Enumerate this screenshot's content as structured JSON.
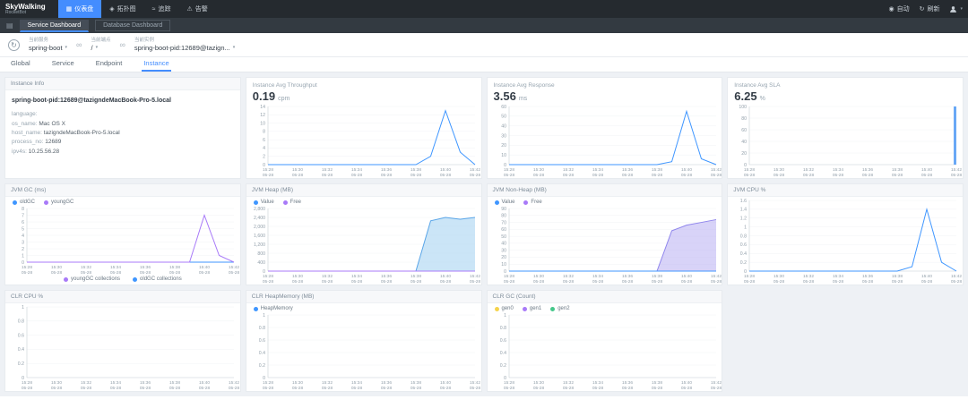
{
  "icons": {
    "dashboard": "▦",
    "topology": "◈",
    "trace": "≈",
    "alarm": "⚠",
    "auto": "◉",
    "refresh": "↻",
    "grid": "▤",
    "link": "∞",
    "caret": "▾",
    "refresh_circle": "↻"
  },
  "navbar": {
    "logo_title": "SkyWalking",
    "logo_subtitle": "RocketBot",
    "menu": [
      {
        "label": "仪表盘",
        "active": true
      },
      {
        "label": "拓扑图",
        "active": false
      },
      {
        "label": "追踪",
        "active": false
      },
      {
        "label": "告警",
        "active": false
      }
    ],
    "auto_label": "自动",
    "refresh_label": "刷新"
  },
  "dashboard_tabs": [
    {
      "label": "Service Dashboard",
      "active": true
    },
    {
      "label": "Database Dashboard",
      "active": false
    }
  ],
  "toolbar": {
    "service": {
      "label": "当前服务",
      "value": "spring-boot"
    },
    "endpoint": {
      "label": "当前端点",
      "value": "/"
    },
    "instance": {
      "label": "当前实例",
      "value": "spring-boot-pid:12689@tazign..."
    }
  },
  "view_tabs": [
    {
      "label": "Global",
      "active": false
    },
    {
      "label": "Service",
      "active": false
    },
    {
      "label": "Endpoint",
      "active": false
    },
    {
      "label": "Instance",
      "active": true
    }
  ],
  "panels": {
    "instance_info": {
      "title": "Instance Info",
      "instance_name": "spring-boot-pid:12689@tazigndeMacBook-Pro-5.local",
      "fields": [
        {
          "key": "language:",
          "value": ""
        },
        {
          "key": "os_name:",
          "value": "Mac OS X"
        },
        {
          "key": "host_name:",
          "value": "tazigndeMacBook-Pro-5.local"
        },
        {
          "key": "process_no:",
          "value": "12689"
        },
        {
          "key": "ipv4s:",
          "value": "10.25.56.28"
        }
      ]
    },
    "throughput": {
      "title": "Instance Avg Throughput",
      "value": "0.19",
      "unit": "cpm"
    },
    "response": {
      "title": "Instance Avg Response",
      "value": "3.56",
      "unit": "ms"
    },
    "sla": {
      "title": "Instance Avg SLA",
      "value": "6.25",
      "unit": "%"
    },
    "jvm_gc": {
      "title": "JVM GC (ms)",
      "legend": [
        {
          "label": "oldGC",
          "color": "#3f96ff"
        },
        {
          "label": "youngGC",
          "color": "#a87af8"
        }
      ],
      "bottom_legend": [
        {
          "label": "youngGC collections",
          "color": "#a87af8"
        },
        {
          "label": "oldGC collections",
          "color": "#3f96ff"
        }
      ]
    },
    "jvm_heap": {
      "title": "JVM Heap (MB)",
      "legend": [
        {
          "label": "Value",
          "color": "#3f96ff"
        },
        {
          "label": "Free",
          "color": "#a87af8"
        }
      ]
    },
    "jvm_nonheap": {
      "title": "JVM Non-Heap (MB)",
      "legend": [
        {
          "label": "Value",
          "color": "#3f96ff"
        },
        {
          "label": "Free",
          "color": "#a87af8"
        }
      ]
    },
    "jvm_cpu": {
      "title": "JVM CPU %"
    },
    "clr_cpu": {
      "title": "CLR CPU %"
    },
    "clr_heap": {
      "title": "CLR HeapMemory (MB)",
      "legend": [
        {
          "label": "HeapMemory",
          "color": "#3f96ff"
        }
      ]
    },
    "clr_gc": {
      "title": "CLR GC (Count)",
      "legend": [
        {
          "label": "gen0",
          "color": "#f5d34c"
        },
        {
          "label": "gen1",
          "color": "#a87af8"
        },
        {
          "label": "gen2",
          "color": "#45c78a"
        }
      ]
    }
  },
  "chart_data": {
    "throughput": {
      "type": "line",
      "x_labels": [
        "15:28",
        "15:30",
        "15:32",
        "15:34",
        "15:36",
        "15:38",
        "15:40",
        "15:42"
      ],
      "x_sub": "05-28",
      "ylim": [
        0,
        14
      ],
      "y_ticks": [
        0,
        2,
        4,
        6,
        8,
        10,
        12,
        14
      ],
      "series": [
        {
          "name": "Throughput",
          "type": "line",
          "color": "#3f96ff",
          "values": [
            0,
            0,
            0,
            0,
            0,
            0,
            0,
            0,
            0,
            0,
            0,
            2,
            13,
            3,
            0
          ]
        }
      ]
    },
    "response": {
      "type": "line",
      "x_labels": [
        "15:28",
        "15:30",
        "15:32",
        "15:34",
        "15:36",
        "15:38",
        "15:40",
        "15:42"
      ],
      "x_sub": "05-28",
      "ylim": [
        0,
        60
      ],
      "y_ticks": [
        0,
        10,
        20,
        30,
        40,
        50,
        60
      ],
      "series": [
        {
          "name": "Response",
          "type": "line",
          "color": "#3f96ff",
          "values": [
            0,
            0,
            0,
            0,
            0,
            0,
            0,
            0,
            0,
            0,
            0,
            3,
            55,
            6,
            0
          ]
        }
      ]
    },
    "sla": {
      "type": "bar",
      "x_labels": [
        "15:28",
        "15:30",
        "15:32",
        "15:34",
        "15:36",
        "15:38",
        "15:40",
        "15:42"
      ],
      "x_sub": "05-28",
      "ylim": [
        0,
        100
      ],
      "y_ticks": [
        0,
        20,
        40,
        60,
        80,
        100
      ],
      "series": [
        {
          "name": "SLA",
          "type": "bar",
          "color": "#69a8f6",
          "values": [
            0,
            0,
            0,
            0,
            0,
            0,
            0,
            0,
            0,
            0,
            0,
            0,
            0,
            0,
            100
          ]
        }
      ]
    },
    "jvm_gc": {
      "type": "line",
      "x_labels": [
        "15:28",
        "15:30",
        "15:32",
        "15:34",
        "15:36",
        "15:38",
        "15:40",
        "15:42"
      ],
      "x_sub": "05-28",
      "ylim": [
        0,
        8
      ],
      "y_ticks": [
        0,
        1,
        2,
        3,
        4,
        5,
        6,
        7,
        8
      ],
      "series": [
        {
          "name": "oldGC",
          "type": "line",
          "color": "#3f96ff",
          "values": [
            0,
            0,
            0,
            0,
            0,
            0,
            0,
            0,
            0,
            0,
            0,
            0,
            0,
            0,
            0
          ]
        },
        {
          "name": "youngGC",
          "type": "line",
          "color": "#a87af8",
          "values": [
            0,
            0,
            0,
            0,
            0,
            0,
            0,
            0,
            0,
            0,
            0,
            0,
            7,
            1,
            0
          ]
        }
      ]
    },
    "jvm_heap": {
      "type": "area",
      "x_labels": [
        "15:28",
        "15:30",
        "15:32",
        "15:34",
        "15:36",
        "15:38",
        "15:40",
        "15:42"
      ],
      "x_sub": "05-28",
      "ylim": [
        0,
        2800
      ],
      "y_ticks": [
        0,
        400,
        800,
        1200,
        1600,
        2000,
        2400,
        2800
      ],
      "series": [
        {
          "name": "Value",
          "type": "area",
          "color": "#59a5e8",
          "fill": "#a8d4f2",
          "values": [
            0,
            0,
            0,
            0,
            0,
            0,
            0,
            0,
            0,
            0,
            0,
            2250,
            2400,
            2320,
            2400
          ]
        },
        {
          "name": "Free",
          "type": "line",
          "color": "#a87af8",
          "values": [
            0,
            0,
            0,
            0,
            0,
            0,
            0,
            0,
            0,
            0,
            0,
            0,
            0,
            0,
            0
          ]
        }
      ]
    },
    "jvm_nonheap": {
      "type": "area",
      "x_labels": [
        "15:28",
        "15:30",
        "15:32",
        "15:34",
        "15:36",
        "15:38",
        "15:40",
        "15:42"
      ],
      "x_sub": "05-28",
      "ylim": [
        0,
        90
      ],
      "y_ticks": [
        0,
        10,
        20,
        30,
        40,
        50,
        60,
        70,
        80,
        90
      ],
      "series": [
        {
          "name": "Free",
          "type": "area",
          "color": "#8f85ec",
          "fill": "#beb6f4",
          "values": [
            0,
            0,
            0,
            0,
            0,
            0,
            0,
            0,
            0,
            0,
            0,
            58,
            66,
            70,
            74
          ]
        },
        {
          "name": "Value",
          "type": "line",
          "color": "#3f96ff",
          "values": [
            0,
            0,
            0,
            0,
            0,
            0,
            0,
            0,
            0,
            0,
            0,
            0,
            0,
            0,
            0
          ]
        }
      ]
    },
    "jvm_cpu": {
      "type": "line",
      "x_labels": [
        "15:28",
        "15:30",
        "15:32",
        "15:34",
        "15:36",
        "15:38",
        "15:40",
        "15:42"
      ],
      "x_sub": "05-28",
      "ylim": [
        0,
        1.6
      ],
      "y_ticks": [
        0,
        0.2,
        0.4,
        0.6,
        0.8,
        1,
        1.2,
        1.4,
        1.6
      ],
      "series": [
        {
          "name": "CPU",
          "type": "line",
          "color": "#3f96ff",
          "values": [
            0,
            0,
            0,
            0,
            0,
            0,
            0,
            0,
            0,
            0,
            0,
            0.1,
            1.4,
            0.2,
            0
          ]
        }
      ]
    },
    "clr_cpu": {
      "type": "line",
      "x_labels": [
        "15:28",
        "15:30",
        "15:32",
        "15:34",
        "15:36",
        "15:38",
        "15:40",
        "15:42"
      ],
      "x_sub": "05-28",
      "ylim": [
        0,
        1
      ],
      "y_ticks": [
        0,
        0.2,
        0.4,
        0.6,
        0.8,
        1
      ],
      "series": []
    },
    "clr_heap": {
      "type": "line",
      "x_labels": [
        "15:28",
        "15:30",
        "15:32",
        "15:34",
        "15:36",
        "15:38",
        "15:40",
        "15:42"
      ],
      "x_sub": "05-28",
      "ylim": [
        0,
        1
      ],
      "y_ticks": [
        0,
        0.2,
        0.4,
        0.6,
        0.8,
        1
      ],
      "series": []
    },
    "clr_gc": {
      "type": "line",
      "x_labels": [
        "15:28",
        "15:30",
        "15:32",
        "15:34",
        "15:36",
        "15:38",
        "15:40",
        "15:42"
      ],
      "x_sub": "05-28",
      "ylim": [
        0,
        1
      ],
      "y_ticks": [
        0,
        0.2,
        0.4,
        0.6,
        0.8,
        1
      ],
      "series": []
    }
  }
}
